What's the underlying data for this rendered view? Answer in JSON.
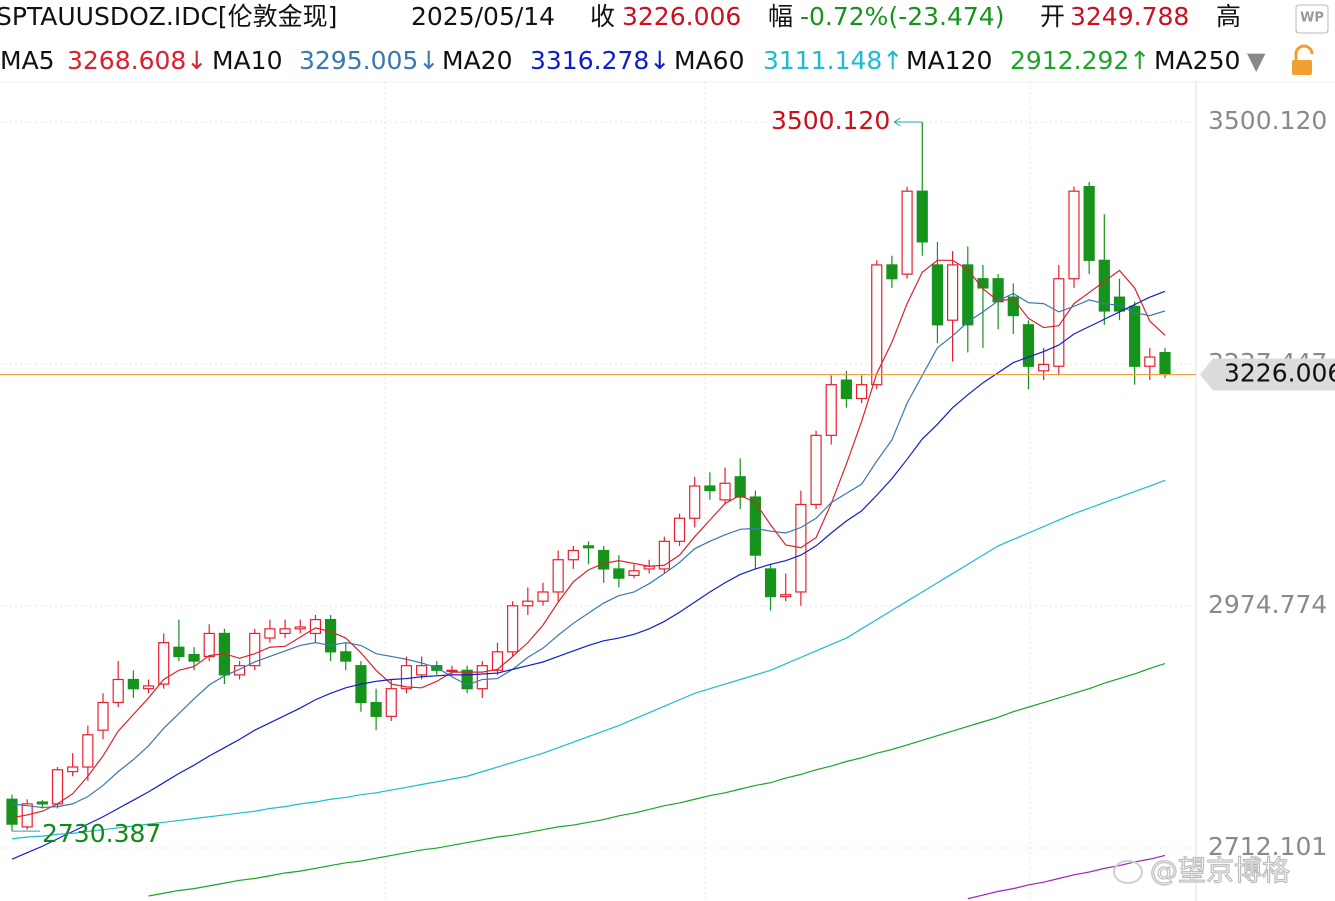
{
  "header": {
    "symbol": "SPTAUUSDOZ.IDC[伦敦金现]",
    "date": "2025/05/14",
    "close_label": "收",
    "close": 3226.006,
    "change_label": "幅",
    "change": "-0.72%(-23.474)",
    "open_label": "开",
    "open": 3249.788,
    "high_label": "高"
  },
  "chart_data": {
    "type": "candlestick",
    "up_color": "#e8202e",
    "down_color": "#16931b",
    "price_line_color": "#f0a040",
    "ylim": [
      2654.57,
      3545.71
    ],
    "yticks": [
      {
        "value": 3500.12,
        "label": "3500.120"
      },
      3237.447,
      2974.774,
      2712.101
    ],
    "grid": true,
    "open": [
      2765,
      2735,
      2762,
      2760,
      2795,
      2800,
      2840,
      2870,
      2895,
      2885,
      2890,
      2930,
      2922,
      2920,
      2945,
      2900,
      2910,
      2940,
      2945,
      2950,
      2945,
      2960,
      2925,
      2910,
      2870,
      2855,
      2885,
      2900,
      2910,
      2905,
      2905,
      2885,
      2905,
      2925,
      2975,
      2980,
      2990,
      3025,
      3040,
      3035,
      3015,
      3008,
      3015,
      3015,
      3045,
      3070,
      3105,
      3090,
      3115,
      3093,
      3015,
      2985,
      2990,
      3085,
      3160,
      3220,
      3200,
      3215,
      3345,
      3335,
      3425,
      3345,
      3285,
      3345,
      3330,
      3330,
      3310,
      3280,
      3230,
      3235,
      3330,
      3430,
      3350,
      3310,
      3300,
      3235,
      3249.788
    ],
    "high": [
      2770,
      2765,
      2764,
      2800,
      2815,
      2845,
      2880,
      2915,
      2905,
      2895,
      2945,
      2960,
      2930,
      2955,
      2950,
      2915,
      2950,
      2960,
      2960,
      2960,
      2965,
      2965,
      2935,
      2915,
      2885,
      2895,
      2920,
      2920,
      2915,
      2910,
      2910,
      2915,
      2935,
      2980,
      2995,
      3000,
      3035,
      3040,
      3045,
      3040,
      3030,
      3020,
      3025,
      3050,
      3075,
      3115,
      3120,
      3125,
      3135,
      3100,
      3020,
      3010,
      3100,
      3165,
      3225,
      3230,
      3225,
      3350,
      3355,
      3430,
      3500.12,
      3370,
      3360,
      3365,
      3345,
      3335,
      3325,
      3285,
      3255,
      3345,
      3430,
      3435,
      3400,
      3330,
      3305,
      3255,
      3255
    ],
    "low": [
      2730.387,
      2732,
      2755,
      2755,
      2790,
      2785,
      2830,
      2865,
      2875,
      2880,
      2885,
      2915,
      2905,
      2915,
      2890,
      2895,
      2905,
      2935,
      2940,
      2945,
      2935,
      2915,
      2905,
      2860,
      2840,
      2850,
      2880,
      2895,
      2900,
      2900,
      2880,
      2875,
      2900,
      2920,
      2965,
      2975,
      2980,
      3015,
      3020,
      3000,
      2995,
      3005,
      3010,
      3010,
      3040,
      3060,
      3090,
      3085,
      3080,
      3015,
      2970,
      2980,
      2975,
      3080,
      3150,
      3190,
      3195,
      3210,
      3320,
      3330,
      3355,
      3260,
      3240,
      3250,
      3255,
      3275,
      3270,
      3210,
      3220,
      3225,
      3320,
      3335,
      3280,
      3285,
      3215,
      3220,
      3222
    ],
    "close": [
      2738,
      2760,
      2760,
      2797,
      2800,
      2835,
      2870,
      2895,
      2885,
      2888,
      2935,
      2920,
      2915,
      2945,
      2900,
      2910,
      2945,
      2950,
      2950,
      2952,
      2960,
      2925,
      2915,
      2870,
      2855,
      2885,
      2910,
      2910,
      2905,
      2905,
      2885,
      2910,
      2925,
      2975,
      2980,
      2990,
      3025,
      3035,
      3038,
      3015,
      3005,
      3013,
      3018,
      3045,
      3070,
      3105,
      3100,
      3108,
      3093,
      3030,
      2985,
      2987,
      3085,
      3160,
      3215,
      3200,
      3215,
      3345,
      3330,
      3425,
      3370,
      3280,
      3345,
      3280,
      3320,
      3305,
      3290,
      3235,
      3237,
      3330,
      3425,
      3350,
      3295,
      3295,
      3235,
      3245,
      3226.006
    ],
    "series": [
      {
        "name": "MA5",
        "color": "#d8222f",
        "value_label": "3268.608↓",
        "values": [
          2745,
          2748,
          2752,
          2760,
          2771,
          2790,
          2812,
          2839,
          2857,
          2875,
          2895,
          2905,
          2909,
          2921,
          2923,
          2918,
          2923,
          2930,
          2931,
          2941,
          2951,
          2947,
          2940,
          2924,
          2905,
          2890,
          2887,
          2886,
          2893,
          2903,
          2903,
          2903,
          2906,
          2920,
          2935,
          2954,
          2979,
          3001,
          3014,
          3021,
          3024,
          3021,
          3018,
          3019,
          3030,
          3050,
          3068,
          3086,
          3095,
          3087,
          3063,
          3041,
          3038,
          3049,
          3086,
          3129,
          3175,
          3227,
          3261,
          3303,
          3337,
          3350,
          3350,
          3340,
          3319,
          3306,
          3308,
          3287,
          3277,
          3279,
          3303,
          3315,
          3327,
          3339,
          3320,
          3284,
          3268.608
        ]
      },
      {
        "name": "MA10",
        "color": "#3a78b0",
        "value_label": "3295.005↓",
        "values": [
          2760,
          2758,
          2756,
          2757,
          2760,
          2768,
          2780,
          2795,
          2808,
          2823,
          2842,
          2858,
          2874,
          2889,
          2899,
          2906,
          2914,
          2920,
          2926,
          2932,
          2935,
          2932,
          2935,
          2932,
          2923,
          2920,
          2917,
          2913,
          2908,
          2898,
          2889,
          2895,
          2896,
          2906,
          2919,
          2929,
          2943,
          2956,
          2967,
          2978,
          2986,
          2990,
          2999,
          3010,
          3022,
          3037,
          3045,
          3052,
          3058,
          3059,
          3056,
          3054,
          3060,
          3070,
          3087,
          3097,
          3107,
          3132,
          3155,
          3195,
          3225,
          3255,
          3268,
          3283,
          3294,
          3306,
          3314,
          3304,
          3303,
          3294,
          3300,
          3307,
          3303,
          3301,
          3293,
          3290,
          3295.005
        ]
      },
      {
        "name": "MA20",
        "color": "#1020c8",
        "value_label": "3316.278↓",
        "values": [
          2700,
          2707,
          2714,
          2722,
          2730,
          2738,
          2746,
          2755,
          2764,
          2773,
          2783,
          2793,
          2802,
          2812,
          2821,
          2830,
          2840,
          2848,
          2856,
          2864,
          2873,
          2880,
          2886,
          2890,
          2893,
          2895,
          2896,
          2898,
          2899,
          2900,
          2900,
          2901,
          2902,
          2906,
          2910,
          2914,
          2920,
          2926,
          2932,
          2937,
          2940,
          2944,
          2950,
          2958,
          2968,
          2979,
          2990,
          3000,
          3009,
          3015,
          3020,
          3024,
          3030,
          3040,
          3054,
          3067,
          3078,
          3095,
          3113,
          3134,
          3156,
          3172,
          3190,
          3204,
          3217,
          3228,
          3239,
          3245,
          3251,
          3258,
          3270,
          3278,
          3286,
          3294,
          3302,
          3310,
          3316.278
        ]
      },
      {
        "name": "MA60",
        "color": "#1fbcd0",
        "value_label": "3111.148↑",
        "values": [
          2722,
          2724,
          2725,
          2727,
          2728,
          2730,
          2732,
          2734,
          2736,
          2738,
          2740,
          2742,
          2744,
          2746,
          2748,
          2750,
          2752,
          2755,
          2757,
          2760,
          2762,
          2765,
          2767,
          2770,
          2772,
          2775,
          2778,
          2781,
          2784,
          2787,
          2790,
          2795,
          2800,
          2805,
          2810,
          2815,
          2821,
          2827,
          2833,
          2839,
          2845,
          2852,
          2859,
          2866,
          2873,
          2880,
          2885,
          2890,
          2895,
          2900,
          2905,
          2912,
          2919,
          2926,
          2933,
          2940,
          2950,
          2960,
          2970,
          2980,
          2990,
          3000,
          3010,
          3020,
          3030,
          3040,
          3047,
          3054,
          3061,
          3068,
          3075,
          3081,
          3087,
          3093,
          3099,
          3105,
          3111.148
        ]
      },
      {
        "name": "MA120",
        "color": "#1ea42a",
        "value_label": "2912.292↑",
        "values": [
          null,
          null,
          null,
          null,
          null,
          null,
          null,
          null,
          null,
          2660,
          2663,
          2666,
          2668,
          2671,
          2674,
          2677,
          2679,
          2682,
          2685,
          2687,
          2690,
          2693,
          2696,
          2698,
          2701,
          2704,
          2707,
          2710,
          2712,
          2715,
          2718,
          2721,
          2724,
          2726,
          2729,
          2732,
          2735,
          2737,
          2740,
          2743,
          2747,
          2750,
          2754,
          2758,
          2761,
          2765,
          2769,
          2772,
          2776,
          2780,
          2783,
          2788,
          2792,
          2797,
          2801,
          2806,
          2810,
          2815,
          2819,
          2824,
          2829,
          2834,
          2839,
          2844,
          2849,
          2854,
          2860,
          2865,
          2870,
          2875,
          2880,
          2885,
          2891,
          2896,
          2901,
          2907,
          2912.292
        ]
      },
      {
        "name": "MA250",
        "color": "#a020c0",
        "values": [
          null,
          null,
          null,
          null,
          null,
          null,
          null,
          null,
          null,
          null,
          null,
          null,
          null,
          null,
          null,
          null,
          null,
          null,
          null,
          null,
          null,
          null,
          null,
          null,
          null,
          null,
          null,
          null,
          null,
          null,
          null,
          null,
          null,
          null,
          null,
          null,
          null,
          null,
          null,
          null,
          null,
          null,
          null,
          null,
          null,
          null,
          null,
          null,
          null,
          null,
          null,
          null,
          null,
          null,
          null,
          null,
          null,
          null,
          null,
          null,
          null,
          null,
          null,
          2657,
          2661,
          2665,
          2668,
          2672,
          2675,
          2679,
          2683,
          2686,
          2690,
          2693,
          2697,
          2700,
          2704
        ]
      }
    ],
    "max_label": {
      "value": 3500.12,
      "label": "3500.120"
    },
    "min_label": {
      "value": 2730.387,
      "label": "2730.387"
    },
    "last_price": 3226.006
  },
  "watermark": "@望京博格"
}
